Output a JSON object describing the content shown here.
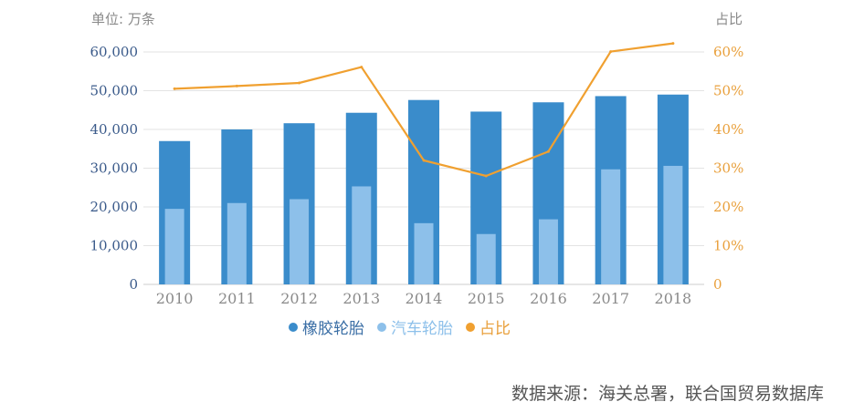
{
  "chart_data": {
    "type": "bar",
    "categories": [
      "2010",
      "2011",
      "2012",
      "2013",
      "2014",
      "2015",
      "2016",
      "2017",
      "2018"
    ],
    "series": [
      {
        "name": "橡胶轮胎",
        "type": "bar",
        "axis": "left",
        "color": "#3a8ccb",
        "values": [
          37000,
          40000,
          41600,
          44300,
          47600,
          44600,
          47000,
          48600,
          49000
        ]
      },
      {
        "name": "汽车轮胎",
        "type": "bar",
        "axis": "left",
        "color": "#8dc0ea",
        "values": [
          19500,
          21000,
          22000,
          25300,
          15800,
          13000,
          16800,
          29700,
          30600
        ]
      },
      {
        "name": "占比",
        "type": "line",
        "axis": "right",
        "color": "#f0a030",
        "values": [
          0.505,
          0.512,
          0.52,
          0.561,
          0.32,
          0.28,
          0.343,
          0.601,
          0.622
        ]
      }
    ],
    "ylim_left": [
      0,
      60000
    ],
    "ylim_right": [
      0,
      0.6
    ],
    "left_ticks": [
      "0",
      "10,000",
      "20,000",
      "30,000",
      "40,000",
      "50,000",
      "60,000"
    ],
    "right_ticks": [
      "0",
      "10%",
      "20%",
      "30%",
      "40%",
      "50%",
      "60%"
    ],
    "ylabel_left": "单位: 万条",
    "ylabel_right": "占比",
    "grid": true,
    "legend_position": "bottom"
  },
  "source": "数据来源：海关总署，联合国贸易数据库",
  "colors": {
    "axis_left": "#3a5a8a",
    "axis_right": "#e9a03c",
    "grid": "#e3e3e3",
    "xlabel": "#8a8a8a"
  }
}
